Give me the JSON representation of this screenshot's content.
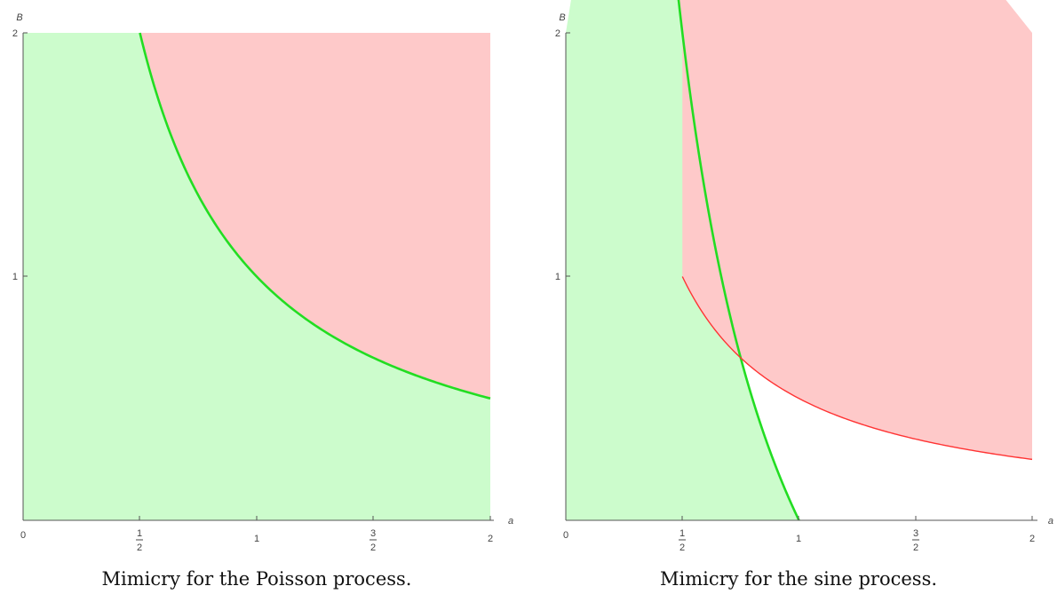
{
  "chart_data": [
    {
      "type": "area",
      "title": "",
      "caption": "Mimicry for the Poisson process.",
      "xlabel": "a",
      "ylabel": "B",
      "xlim": [
        0,
        2
      ],
      "ylim": [
        0,
        2
      ],
      "grid": false,
      "x_ticks": [
        {
          "value": 0,
          "label": "0"
        },
        {
          "value": 0.5,
          "num": "1",
          "den": "2"
        },
        {
          "value": 1,
          "label": "1"
        },
        {
          "value": 1.5,
          "num": "3",
          "den": "2"
        },
        {
          "value": 2,
          "label": "2"
        }
      ],
      "y_ticks": [
        {
          "value": 1,
          "label": "1"
        },
        {
          "value": 2,
          "label": "2"
        }
      ],
      "curves": [
        {
          "id": "boundary",
          "formula": "B = 1/a",
          "x": [
            0.5,
            0.6,
            0.75,
            1.0,
            1.25,
            1.5,
            1.75,
            2.0
          ],
          "y": [
            2.0,
            1.667,
            1.333,
            1.0,
            0.8,
            0.667,
            0.571,
            0.5
          ],
          "color": "#22dd22"
        }
      ],
      "regions": [
        {
          "id": "green",
          "color": "#ccfccc",
          "description_of": "below curve"
        },
        {
          "id": "red",
          "color": "#fec9c9",
          "description_of": "above curve"
        }
      ]
    },
    {
      "type": "area",
      "title": "",
      "caption": "Mimicry for the sine process.",
      "xlabel": "a",
      "ylabel": "B",
      "xlim": [
        0,
        2
      ],
      "ylim": [
        0,
        2
      ],
      "grid": false,
      "x_ticks": [
        {
          "value": 0,
          "label": "0"
        },
        {
          "value": 0.5,
          "num": "1",
          "den": "2"
        },
        {
          "value": 1,
          "label": "1"
        },
        {
          "value": 1.5,
          "num": "3",
          "den": "2"
        },
        {
          "value": 2,
          "label": "2"
        }
      ],
      "y_ticks": [
        {
          "value": 1,
          "label": "1"
        },
        {
          "value": 2,
          "label": "2"
        }
      ],
      "curves": [
        {
          "id": "green-boundary",
          "formula": "B = 2(1-a)/a",
          "x": [
            0.333,
            0.4,
            0.5,
            0.6,
            0.75,
            0.9,
            1.0
          ],
          "y": [
            2.0,
            1.5,
            1.0,
            0.667,
            0.333,
            0.111,
            0.0
          ],
          "color": "#22dd22"
        },
        {
          "id": "red-boundary",
          "formula": "B = 1/(2a)",
          "x": [
            0.5,
            0.75,
            1.0,
            1.25,
            1.5,
            1.75,
            2.0
          ],
          "y": [
            1.0,
            0.667,
            0.5,
            0.4,
            0.333,
            0.286,
            0.25
          ],
          "color": "#ff3333"
        }
      ],
      "regions": [
        {
          "id": "green",
          "color": "#ccfccc"
        },
        {
          "id": "red",
          "color": "#fec9c9"
        }
      ]
    }
  ]
}
